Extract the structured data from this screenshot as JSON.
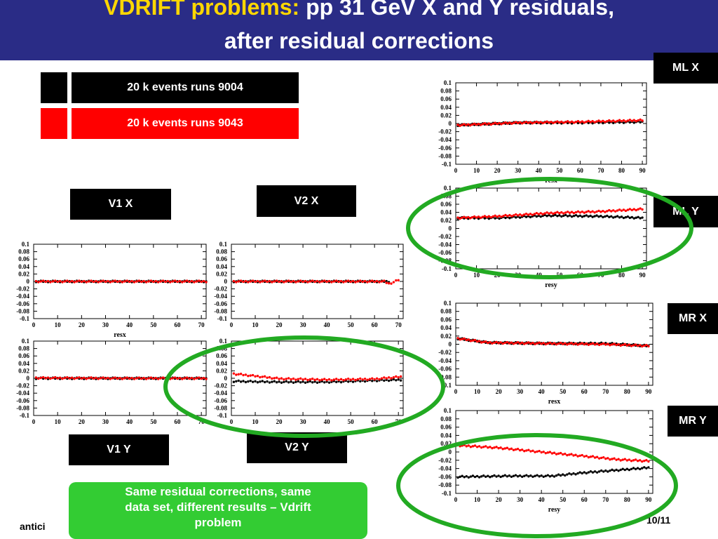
{
  "slide": {
    "title_highlight": "VDRIFT problems:",
    "title_rest": " pp 31 GeV X and Y residuals,",
    "title_line2": "after residual corrections",
    "footer_left": "antici",
    "footer_right": "10/11",
    "callout": [
      "Same residual corrections, same",
      "data set, different results – Vdrift",
      "problem"
    ]
  },
  "legend": [
    {
      "label": "20 k events runs 9004",
      "color": "#000000"
    },
    {
      "label": "20 k events runs 9043",
      "color": "#ff0000"
    }
  ],
  "panel_labels": {
    "v1x": "V1 X",
    "v2x": "V2 X",
    "v1y": "V1 Y",
    "v2y": "V2 Y",
    "mlx": "ML X",
    "mly": "ML Y",
    "mrx": "MR X",
    "mry": "MR Y"
  },
  "colors": {
    "header_bg": "#2a2c86",
    "title_highlight": "#ffd700",
    "callout_bg": "#33cc33",
    "ellipse": "#22aa22",
    "series_a": "#000000",
    "series_b": "#ff0000"
  },
  "chart_data": [
    {
      "id": "v1x",
      "type": "scatter",
      "xlabel": "resx",
      "xlim": [
        0,
        72
      ],
      "xticks": [
        0,
        10,
        20,
        30,
        40,
        50,
        60,
        70
      ],
      "ylim": [
        -0.1,
        0.1
      ],
      "series": [
        {
          "color": "#000000",
          "points": [
            [
              1,
              0
            ],
            [
              36,
              0
            ],
            [
              72,
              0
            ]
          ]
        },
        {
          "color": "#ff0000",
          "points": [
            [
              1,
              0
            ],
            [
              36,
              0
            ],
            [
              72,
              0
            ]
          ]
        }
      ]
    },
    {
      "id": "v2x",
      "type": "scatter",
      "xlabel": "",
      "xlim": [
        0,
        72
      ],
      "xticks": [
        0,
        10,
        20,
        30,
        40,
        50,
        60,
        70
      ],
      "ylim": [
        -0.1,
        0.1
      ],
      "series": [
        {
          "color": "#000000",
          "points": [
            [
              1,
              0
            ],
            [
              36,
              0
            ],
            [
              66,
              0
            ]
          ]
        },
        {
          "color": "#ff0000",
          "points": [
            [
              1,
              0
            ],
            [
              36,
              0
            ],
            [
              64,
              0
            ],
            [
              66,
              -0.006
            ],
            [
              68,
              -0.002
            ],
            [
              70,
              0.004
            ]
          ]
        }
      ]
    },
    {
      "id": "v1y",
      "type": "scatter",
      "xlabel": "",
      "xlim": [
        0,
        72
      ],
      "xticks": [
        0,
        10,
        20,
        30,
        40,
        50,
        60,
        70
      ],
      "ylim": [
        -0.1,
        0.1
      ],
      "series": [
        {
          "color": "#000000",
          "points": [
            [
              1,
              0
            ],
            [
              36,
              0
            ],
            [
              72,
              0
            ]
          ]
        },
        {
          "color": "#ff0000",
          "points": [
            [
              1,
              0.001
            ],
            [
              36,
              0
            ],
            [
              72,
              0
            ]
          ]
        }
      ]
    },
    {
      "id": "v2y",
      "type": "scatter",
      "xlabel": "",
      "xlim": [
        0,
        72
      ],
      "xticks": [
        0,
        10,
        20,
        30,
        40,
        50,
        60,
        70
      ],
      "ylim": [
        -0.1,
        0.1
      ],
      "series": [
        {
          "color": "#000000",
          "points": [
            [
              1,
              -0.008
            ],
            [
              20,
              -0.01
            ],
            [
              40,
              -0.01
            ],
            [
              60,
              -0.006
            ],
            [
              71,
              -0.004
            ]
          ]
        },
        {
          "color": "#ff0000",
          "points": [
            [
              1,
              0.012
            ],
            [
              10,
              0.006
            ],
            [
              20,
              -0.001
            ],
            [
              40,
              -0.004
            ],
            [
              60,
              -0.002
            ],
            [
              71,
              0.004
            ]
          ]
        }
      ]
    },
    {
      "id": "mlx",
      "type": "scatter",
      "xlabel": "resx",
      "xlim": [
        0,
        92
      ],
      "xticks": [
        0,
        10,
        20,
        30,
        40,
        50,
        60,
        70,
        80,
        90
      ],
      "ylim": [
        -0.1,
        0.1
      ],
      "series": [
        {
          "color": "#000000",
          "points": [
            [
              1,
              -0.004
            ],
            [
              30,
              0.002
            ],
            [
              60,
              0.002
            ],
            [
              90,
              0.004
            ]
          ]
        },
        {
          "color": "#ff0000",
          "points": [
            [
              1,
              -0.004
            ],
            [
              30,
              0.002
            ],
            [
              60,
              0.004
            ],
            [
              90,
              0.008
            ]
          ]
        }
      ]
    },
    {
      "id": "mly",
      "type": "scatter",
      "xlabel": "resy",
      "xlim": [
        0,
        92
      ],
      "xticks": [
        0,
        10,
        20,
        30,
        40,
        50,
        60,
        70,
        80,
        90
      ],
      "ylim": [
        -0.1,
        0.1
      ],
      "series": [
        {
          "color": "#000000",
          "points": [
            [
              1,
              0.026
            ],
            [
              20,
              0.026
            ],
            [
              45,
              0.032
            ],
            [
              70,
              0.03
            ],
            [
              90,
              0.026
            ]
          ]
        },
        {
          "color": "#ff0000",
          "points": [
            [
              1,
              0.026
            ],
            [
              20,
              0.03
            ],
            [
              45,
              0.038
            ],
            [
              70,
              0.042
            ],
            [
              90,
              0.048
            ]
          ]
        }
      ]
    },
    {
      "id": "mrx",
      "type": "scatter",
      "xlabel": "resx",
      "xlim": [
        0,
        92
      ],
      "xticks": [
        0,
        10,
        20,
        30,
        40,
        50,
        60,
        70,
        80,
        90
      ],
      "ylim": [
        -0.1,
        0.1
      ],
      "series": [
        {
          "color": "#000000",
          "points": [
            [
              1,
              0.014
            ],
            [
              15,
              0.004
            ],
            [
              40,
              0.002
            ],
            [
              70,
              0.002
            ],
            [
              90,
              -0.004
            ]
          ]
        },
        {
          "color": "#ff0000",
          "points": [
            [
              1,
              0.014
            ],
            [
              15,
              0.004
            ],
            [
              40,
              0.002
            ],
            [
              70,
              0
            ],
            [
              90,
              -0.004
            ]
          ]
        }
      ]
    },
    {
      "id": "mry",
      "type": "scatter",
      "xlabel": "resy",
      "xlim": [
        0,
        92
      ],
      "xticks": [
        0,
        10,
        20,
        30,
        40,
        50,
        60,
        70,
        80,
        90
      ],
      "ylim": [
        -0.1,
        0.1
      ],
      "series": [
        {
          "color": "#000000",
          "points": [
            [
              1,
              -0.06
            ],
            [
              25,
              -0.058
            ],
            [
              45,
              -0.058
            ],
            [
              60,
              -0.05
            ],
            [
              75,
              -0.044
            ],
            [
              90,
              -0.038
            ]
          ]
        },
        {
          "color": "#ff0000",
          "points": [
            [
              1,
              0.016
            ],
            [
              20,
              0.01
            ],
            [
              40,
              0
            ],
            [
              60,
              -0.01
            ],
            [
              75,
              -0.018
            ],
            [
              90,
              -0.022
            ]
          ]
        }
      ]
    }
  ]
}
